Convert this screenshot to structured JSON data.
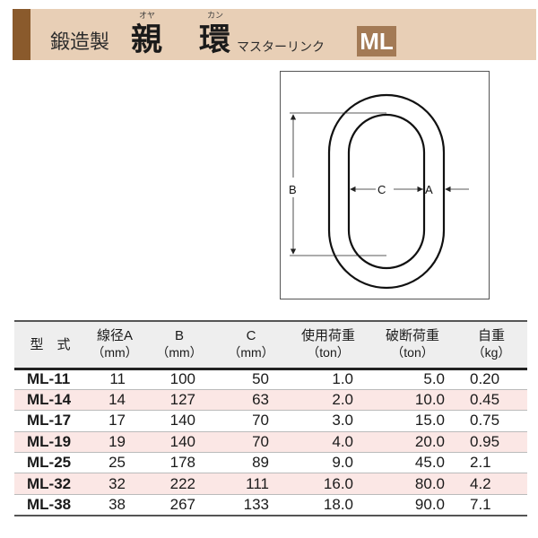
{
  "header": {
    "prefix": "鍛造製",
    "title_char1": "親",
    "title_char2": "環",
    "ruby1": "オヤ",
    "ruby2": "カン",
    "subtitle": "マスターリンク",
    "badge": "ML",
    "colors": {
      "band": "#e8cfb6",
      "stripe": "#8a5a2c",
      "badge": "#a37a55"
    }
  },
  "diagram": {
    "label_a": "A",
    "label_b": "B",
    "label_c": "C"
  },
  "table": {
    "headers": [
      {
        "line1": "型　式",
        "line2": ""
      },
      {
        "line1": "線径A",
        "line2": "（mm）"
      },
      {
        "line1": "B",
        "line2": "（mm）"
      },
      {
        "line1": "C",
        "line2": "（mm）"
      },
      {
        "line1": "使用荷重",
        "line2": "（ton）"
      },
      {
        "line1": "破断荷重",
        "line2": "（ton）"
      },
      {
        "line1": "自重",
        "line2": "（kg）"
      }
    ],
    "rows": [
      [
        "ML-11",
        "11",
        "100",
        "50",
        "1.0",
        "5.0",
        "0.20"
      ],
      [
        "ML-14",
        "14",
        "127",
        "63",
        "2.0",
        "10.0",
        "0.45"
      ],
      [
        "ML-17",
        "17",
        "140",
        "70",
        "3.0",
        "15.0",
        "0.75"
      ],
      [
        "ML-19",
        "19",
        "140",
        "70",
        "4.0",
        "20.0",
        "0.95"
      ],
      [
        "ML-25",
        "25",
        "178",
        "89",
        "9.0",
        "45.0",
        "2.1"
      ],
      [
        "ML-32",
        "32",
        "222",
        "111",
        "16.0",
        "80.0",
        "4.2"
      ],
      [
        "ML-38",
        "38",
        "267",
        "133",
        "18.0",
        "90.0",
        "7.1"
      ]
    ]
  }
}
